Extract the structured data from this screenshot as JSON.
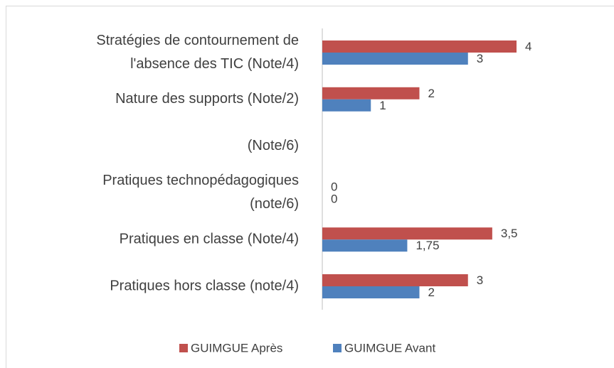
{
  "chart_data": {
    "type": "hbar",
    "categories": [
      [
        "Stratégies de contournement de",
        "l'absence des TIC (Note/4)"
      ],
      [
        "Nature des supports (Note/2)"
      ],
      [
        "(Note/6)"
      ],
      [
        "Pratiques technopédagogiques",
        "(note/6)"
      ],
      [
        "Pratiques en classe (Note/4)"
      ],
      [
        "Pratiques hors classe (note/4)"
      ]
    ],
    "series": [
      {
        "name": "GUIMGUE Après",
        "color": "#c0504d",
        "values": [
          4,
          2,
          null,
          0,
          3.5,
          3
        ],
        "value_labels": [
          "4",
          "2",
          null,
          "0",
          "3,5",
          "3"
        ]
      },
      {
        "name": "GUIMGUE Avant",
        "color": "#4f81bd",
        "values": [
          3,
          1,
          null,
          0,
          1.75,
          2
        ],
        "value_labels": [
          "3",
          "1",
          null,
          "0",
          "1,75",
          "2"
        ]
      }
    ],
    "xlim": [
      0,
      4
    ],
    "legend": "bottom"
  }
}
